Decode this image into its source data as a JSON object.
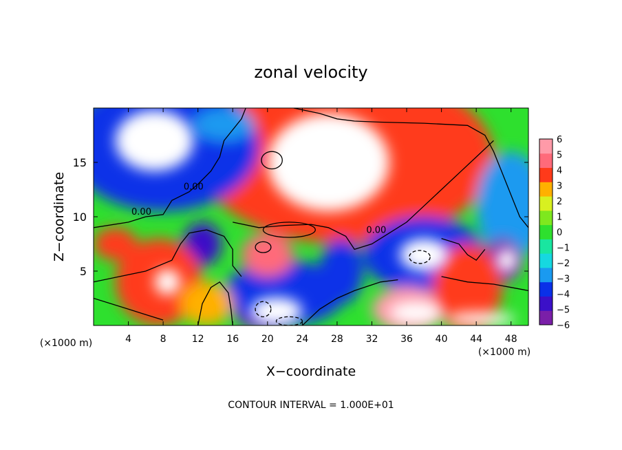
{
  "chart_data": {
    "type": "heatmap",
    "title": "zonal velocity",
    "xlabel": "X−coordinate",
    "ylabel": "Z−coordinate",
    "x_unit_left": "(×1000 m)",
    "x_unit_right": "(×1000 m)",
    "footer": "CONTOUR INTERVAL = 1.000E+01",
    "xlim": [
      0,
      50
    ],
    "ylim": [
      0,
      20
    ],
    "x_ticks": [
      4,
      8,
      12,
      16,
      20,
      24,
      28,
      32,
      36,
      40,
      44,
      48
    ],
    "x_tick_labels": [
      "4",
      "8",
      "12",
      "16",
      "20",
      "24",
      "28",
      "32",
      "36",
      "40",
      "44",
      "48"
    ],
    "y_ticks": [
      5,
      10,
      15
    ],
    "y_tick_labels": [
      "5",
      "10",
      "15"
    ],
    "colorbar": {
      "min": -6,
      "max": 6,
      "ticks": [
        -6,
        -5,
        -4,
        -3,
        -2,
        -1,
        0,
        1,
        2,
        3,
        4,
        5,
        6
      ],
      "tick_labels": [
        "−6",
        "−5",
        "−4",
        "−3",
        "−2",
        "−1",
        "0",
        "1",
        "2",
        "3",
        "4",
        "5",
        "6"
      ],
      "colors": [
        "#7a1fa8",
        "#3b10c8",
        "#0a30e8",
        "#1a9af0",
        "#16d8e0",
        "#19e6a0",
        "#2ee02e",
        "#7ee81e",
        "#d8f020",
        "#ffb000",
        "#ff3a1a",
        "#ff6a7a",
        "#ff9aa8"
      ]
    },
    "contour_labels": [
      {
        "text": "0.00",
        "x": 5.5,
        "y": 10.2
      },
      {
        "text": "0.00",
        "x": 11.5,
        "y": 12.5
      },
      {
        "text": "0.00",
        "x": 32.5,
        "y": 8.5
      }
    ],
    "regions": [
      {
        "x": 30,
        "y": 16,
        "rx": 9,
        "ry": 5,
        "v": 6
      },
      {
        "x": 29,
        "y": 15.5,
        "rx": 17,
        "ry": 8,
        "v": 4
      },
      {
        "x": 8,
        "y": 17,
        "rx": 8,
        "ry": 4.5,
        "v": -6
      },
      {
        "x": 8,
        "y": 16.5,
        "rx": 11,
        "ry": 6,
        "v": -4
      },
      {
        "x": 15,
        "y": 18.5,
        "rx": 3.5,
        "ry": 1.5,
        "v": -3
      },
      {
        "x": 48,
        "y": 11,
        "rx": 4,
        "ry": 5,
        "v": -3
      },
      {
        "x": 38,
        "y": 6.5,
        "rx": 3.5,
        "ry": 2,
        "v": -6
      },
      {
        "x": 38,
        "y": 6.5,
        "rx": 7,
        "ry": 3.5,
        "v": -4
      },
      {
        "x": 47,
        "y": 6,
        "rx": 2.2,
        "ry": 2,
        "v": -6
      },
      {
        "x": 12.5,
        "y": 7.5,
        "rx": 2.2,
        "ry": 2,
        "v": -5
      },
      {
        "x": 8,
        "y": 3.5,
        "rx": 3,
        "ry": 2.5,
        "v": 6
      },
      {
        "x": 7.5,
        "y": 4,
        "rx": 5,
        "ry": 4,
        "v": 4
      },
      {
        "x": 20,
        "y": 1.5,
        "rx": 4,
        "ry": 2,
        "v": -6
      },
      {
        "x": 22,
        "y": 3,
        "rx": 7,
        "ry": 3,
        "v": -4
      },
      {
        "x": 36,
        "y": 1.5,
        "rx": 4,
        "ry": 2,
        "v": 6
      },
      {
        "x": 43,
        "y": 3.5,
        "rx": 4,
        "ry": 4,
        "v": 4
      },
      {
        "x": 20,
        "y": 6.5,
        "rx": 3,
        "ry": 2,
        "v": 5
      },
      {
        "x": 2.5,
        "y": 7.5,
        "rx": 2.5,
        "ry": 1.5,
        "v": 4
      },
      {
        "x": 28.5,
        "y": 5,
        "rx": 2.5,
        "ry": 3,
        "v": -4
      },
      {
        "x": 13,
        "y": 2,
        "rx": 3,
        "ry": 2,
        "v": 3
      }
    ]
  }
}
